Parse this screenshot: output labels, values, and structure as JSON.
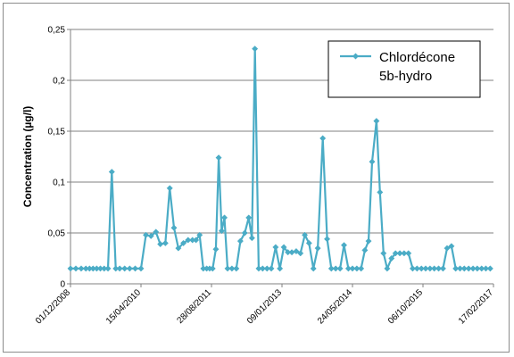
{
  "chart_data": {
    "type": "line",
    "ylabel": "Concentration (µg/l)",
    "xlabel": "",
    "ylim": [
      0,
      0.25
    ],
    "yticks": [
      0,
      0.05,
      0.1,
      0.15,
      0.2,
      0.25
    ],
    "ytick_labels": [
      "0",
      "0,05",
      "0,1",
      "0,15",
      "0,2",
      "0,25"
    ],
    "xlim": [
      "2008-12-01",
      "2017-02-17"
    ],
    "xtick_labels": [
      "01/12/2008",
      "15/04/2010",
      "28/08/2011",
      "09/01/2013",
      "24/05/2014",
      "06/10/2015",
      "17/02/2017"
    ],
    "xtick_dates": [
      "2008-12-01",
      "2010-04-15",
      "2011-08-28",
      "2013-01-09",
      "2014-05-24",
      "2015-10-06",
      "2017-02-17"
    ],
    "grid": "horizontal",
    "legend": "top-right",
    "series": [
      {
        "name_lines": [
          "Chlordécone",
          "5b-hydro"
        ],
        "color": "#4bacc6",
        "points": [
          [
            "2008-12-01",
            0.015
          ],
          [
            "2009-01-08",
            0.015
          ],
          [
            "2009-02-15",
            0.015
          ],
          [
            "2009-03-20",
            0.015
          ],
          [
            "2009-04-15",
            0.015
          ],
          [
            "2009-05-10",
            0.015
          ],
          [
            "2009-06-05",
            0.015
          ],
          [
            "2009-07-01",
            0.015
          ],
          [
            "2009-07-28",
            0.015
          ],
          [
            "2009-08-24",
            0.015
          ],
          [
            "2009-09-20",
            0.11
          ],
          [
            "2009-10-18",
            0.015
          ],
          [
            "2009-11-15",
            0.015
          ],
          [
            "2009-12-20",
            0.015
          ],
          [
            "2010-01-25",
            0.015
          ],
          [
            "2010-03-05",
            0.015
          ],
          [
            "2010-04-15",
            0.015
          ],
          [
            "2010-05-20",
            0.048
          ],
          [
            "2010-06-25",
            0.047
          ],
          [
            "2010-07-30",
            0.051
          ],
          [
            "2010-08-30",
            0.039
          ],
          [
            "2010-10-05",
            0.04
          ],
          [
            "2010-11-05",
            0.094
          ],
          [
            "2010-12-05",
            0.055
          ],
          [
            "2011-01-05",
            0.035
          ],
          [
            "2011-02-10",
            0.04
          ],
          [
            "2011-03-15",
            0.043
          ],
          [
            "2011-04-15",
            0.043
          ],
          [
            "2011-05-10",
            0.043
          ],
          [
            "2011-06-05",
            0.048
          ],
          [
            "2011-07-01",
            0.015
          ],
          [
            "2011-07-25",
            0.015
          ],
          [
            "2011-08-15",
            0.015
          ],
          [
            "2011-09-05",
            0.015
          ],
          [
            "2011-09-28",
            0.034
          ],
          [
            "2011-10-18",
            0.124
          ],
          [
            "2011-11-08",
            0.052
          ],
          [
            "2011-11-28",
            0.065
          ],
          [
            "2011-12-20",
            0.015
          ],
          [
            "2012-01-20",
            0.015
          ],
          [
            "2012-02-20",
            0.015
          ],
          [
            "2012-03-20",
            0.042
          ],
          [
            "2012-04-20",
            0.05
          ],
          [
            "2012-05-18",
            0.065
          ],
          [
            "2012-06-10",
            0.045
          ],
          [
            "2012-07-01",
            0.231
          ],
          [
            "2012-07-28",
            0.015
          ],
          [
            "2012-08-25",
            0.015
          ],
          [
            "2012-09-25",
            0.015
          ],
          [
            "2012-10-25",
            0.015
          ],
          [
            "2012-11-25",
            0.036
          ],
          [
            "2012-12-25",
            0.015
          ],
          [
            "2013-01-22",
            0.036
          ],
          [
            "2013-02-20",
            0.031
          ],
          [
            "2013-03-20",
            0.031
          ],
          [
            "2013-04-20",
            0.032
          ],
          [
            "2013-05-20",
            0.03
          ],
          [
            "2013-06-20",
            0.048
          ],
          [
            "2013-07-20",
            0.04
          ],
          [
            "2013-08-20",
            0.015
          ],
          [
            "2013-09-20",
            0.035
          ],
          [
            "2013-10-25",
            0.143
          ],
          [
            "2013-11-25",
            0.044
          ],
          [
            "2013-12-25",
            0.015
          ],
          [
            "2014-01-25",
            0.015
          ],
          [
            "2014-02-25",
            0.015
          ],
          [
            "2014-03-25",
            0.038
          ],
          [
            "2014-04-25",
            0.015
          ],
          [
            "2014-05-24",
            0.015
          ],
          [
            "2014-06-24",
            0.015
          ],
          [
            "2014-07-24",
            0.015
          ],
          [
            "2014-08-20",
            0.033
          ],
          [
            "2014-09-15",
            0.042
          ],
          [
            "2014-10-10",
            0.12
          ],
          [
            "2014-11-10",
            0.16
          ],
          [
            "2014-12-05",
            0.09
          ],
          [
            "2014-12-30",
            0.03
          ],
          [
            "2015-01-25",
            0.015
          ],
          [
            "2015-02-25",
            0.025
          ],
          [
            "2015-03-25",
            0.03
          ],
          [
            "2015-04-25",
            0.03
          ],
          [
            "2015-05-25",
            0.03
          ],
          [
            "2015-06-25",
            0.03
          ],
          [
            "2015-07-25",
            0.015
          ],
          [
            "2015-08-25",
            0.015
          ],
          [
            "2015-09-25",
            0.015
          ],
          [
            "2015-10-25",
            0.015
          ],
          [
            "2015-11-25",
            0.015
          ],
          [
            "2015-12-25",
            0.015
          ],
          [
            "2016-01-25",
            0.015
          ],
          [
            "2016-02-25",
            0.015
          ],
          [
            "2016-03-25",
            0.035
          ],
          [
            "2016-04-25",
            0.037
          ],
          [
            "2016-05-25",
            0.015
          ],
          [
            "2016-06-25",
            0.015
          ],
          [
            "2016-07-25",
            0.015
          ],
          [
            "2016-08-25",
            0.015
          ],
          [
            "2016-09-25",
            0.015
          ],
          [
            "2016-10-25",
            0.015
          ],
          [
            "2016-11-25",
            0.015
          ],
          [
            "2016-12-25",
            0.015
          ],
          [
            "2017-01-25",
            0.015
          ]
        ]
      }
    ]
  }
}
